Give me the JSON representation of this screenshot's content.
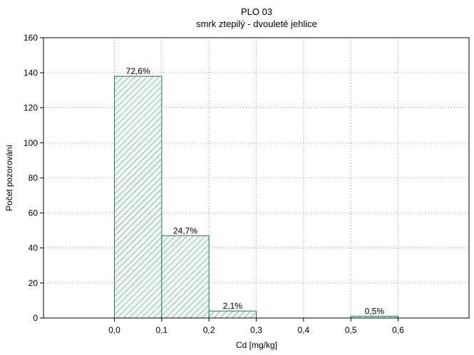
{
  "chart_data": {
    "type": "bar",
    "title": "PLO 03",
    "subtitle": "smrk ztepilý - dvouleté jehlice",
    "xlabel": "Cd [mg/kg]",
    "ylabel": "Počet pozorování",
    "xlim": [
      -0.15,
      0.75
    ],
    "ylim": [
      0,
      160
    ],
    "x_ticks": [
      0.0,
      0.1,
      0.2,
      0.3,
      0.4,
      0.5,
      0.6
    ],
    "x_tick_labels": [
      "0,0",
      "0,1",
      "0,2",
      "0,3",
      "0,4",
      "0,5",
      "0,6"
    ],
    "y_ticks": [
      0,
      20,
      40,
      60,
      80,
      100,
      120,
      140,
      160
    ],
    "y_tick_labels": [
      "0",
      "20",
      "40",
      "60",
      "80",
      "100",
      "120",
      "140",
      "160"
    ],
    "grid": true,
    "bins": [
      {
        "start": 0.0,
        "end": 0.1,
        "value": 138,
        "label": "72,6%"
      },
      {
        "start": 0.1,
        "end": 0.2,
        "value": 47,
        "label": "24,7%"
      },
      {
        "start": 0.2,
        "end": 0.3,
        "value": 4,
        "label": "2,1%"
      },
      {
        "start": 0.3,
        "end": 0.4,
        "value": 0,
        "label": ""
      },
      {
        "start": 0.4,
        "end": 0.5,
        "value": 0,
        "label": ""
      },
      {
        "start": 0.5,
        "end": 0.6,
        "value": 1,
        "label": "0,5%"
      }
    ],
    "bar_color": "#1f7a5a",
    "bar_fill": "#e9f5ef"
  }
}
